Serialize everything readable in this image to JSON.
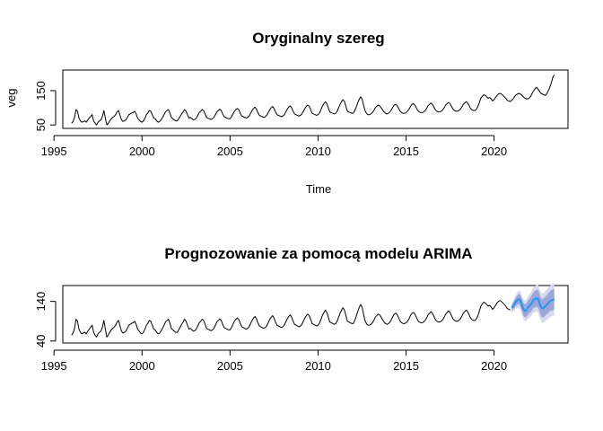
{
  "chart_data": [
    {
      "type": "line",
      "title": "Oryginalny szereg",
      "xlabel": "Time",
      "ylabel": "veg",
      "xlim": [
        1995.5,
        2024.2
      ],
      "ylim": [
        40,
        210
      ],
      "xticks": [
        "1995",
        "2000",
        "2005",
        "2010",
        "2015",
        "2020"
      ],
      "yticks": [
        "50",
        "150"
      ],
      "grid": false,
      "start": 1996.0,
      "frequency": 12,
      "series": [
        {
          "color": "#000000",
          "values": [
            55,
            60,
            72,
            95,
            90,
            70,
            62,
            58,
            60,
            62,
            58,
            65,
            70,
            75,
            80,
            62,
            55,
            50,
            58,
            62,
            65,
            75,
            92,
            70,
            50,
            55,
            62,
            68,
            72,
            75,
            80,
            88,
            92,
            78,
            65,
            60,
            62,
            65,
            72,
            80,
            82,
            85,
            86,
            90,
            82,
            70,
            65,
            60,
            58,
            62,
            70,
            80,
            85,
            92,
            90,
            80,
            70,
            68,
            62,
            58,
            60,
            65,
            72,
            80,
            88,
            92,
            95,
            85,
            72,
            68,
            65,
            62,
            62,
            68,
            75,
            82,
            88,
            95,
            90,
            80,
            70,
            72,
            68,
            65,
            66,
            70,
            78,
            86,
            90,
            95,
            92,
            82,
            72,
            70,
            68,
            66,
            68,
            72,
            80,
            88,
            92,
            96,
            92,
            82,
            74,
            72,
            70,
            68,
            68,
            74,
            82,
            90,
            95,
            98,
            94,
            84,
            76,
            74,
            72,
            70,
            72,
            76,
            84,
            92,
            98,
            102,
            96,
            86,
            78,
            76,
            74,
            72,
            74,
            78,
            86,
            94,
            100,
            104,
            98,
            88,
            80,
            78,
            76,
            74,
            76,
            80,
            88,
            96,
            102,
            106,
            100,
            90,
            82,
            80,
            78,
            76,
            78,
            82,
            90,
            98,
            104,
            108,
            104,
            94,
            84,
            82,
            80,
            78,
            80,
            85,
            95,
            105,
            112,
            118,
            112,
            100,
            88,
            86,
            84,
            82,
            84,
            90,
            100,
            110,
            118,
            124,
            118,
            104,
            90,
            88,
            86,
            84,
            84,
            92,
            102,
            114,
            124,
            132,
            126,
            108,
            92,
            84,
            80,
            80,
            82,
            86,
            92,
            100,
            104,
            108,
            106,
            100,
            94,
            88,
            84,
            82,
            84,
            88,
            94,
            102,
            108,
            110,
            106,
            98,
            90,
            86,
            84,
            84,
            86,
            90,
            96,
            104,
            110,
            112,
            108,
            100,
            92,
            88,
            86,
            86,
            88,
            92,
            98,
            106,
            110,
            114,
            110,
            102,
            94,
            90,
            88,
            88,
            90,
            94,
            100,
            108,
            112,
            116,
            112,
            104,
            96,
            92,
            90,
            90,
            92,
            96,
            102,
            110,
            114,
            118,
            114,
            106,
            98,
            94,
            92,
            92,
            96,
            104,
            116,
            128,
            134,
            138,
            136,
            132,
            128,
            130,
            126,
            120,
            124,
            130,
            136,
            140,
            142,
            140,
            136,
            132,
            128,
            122,
            120,
            118,
            122,
            126,
            132,
            138,
            140,
            142,
            140,
            136,
            132,
            128,
            126,
            126,
            128,
            134,
            142,
            150,
            156,
            160,
            154,
            148,
            142,
            140,
            138,
            136,
            142,
            150,
            160,
            172,
            188,
            196
          ]
        }
      ]
    },
    {
      "type": "line",
      "title": "Prognozowanie za pomocą modelu ARIMA",
      "xlabel": "",
      "ylabel": "",
      "xlim": [
        1995.5,
        2024.2
      ],
      "ylim": [
        35,
        180
      ],
      "xticks": [
        "1995",
        "2000",
        "2005",
        "2010",
        "2015",
        "2020"
      ],
      "yticks": [
        "40",
        "140"
      ],
      "grid": false,
      "start": 1996.0,
      "frequency": 12,
      "forecast_start": 2021.0,
      "series": [
        {
          "color": "#000000",
          "values": [
            55,
            60,
            72,
            95,
            90,
            70,
            62,
            58,
            60,
            62,
            58,
            65,
            70,
            75,
            80,
            62,
            55,
            50,
            58,
            62,
            65,
            75,
            92,
            70,
            50,
            55,
            62,
            68,
            72,
            75,
            80,
            88,
            92,
            78,
            65,
            60,
            62,
            65,
            72,
            80,
            82,
            85,
            86,
            90,
            82,
            70,
            65,
            60,
            58,
            62,
            70,
            80,
            85,
            92,
            90,
            80,
            70,
            68,
            62,
            58,
            60,
            65,
            72,
            80,
            88,
            92,
            95,
            85,
            72,
            68,
            65,
            62,
            62,
            68,
            75,
            82,
            88,
            95,
            90,
            80,
            70,
            72,
            68,
            65,
            66,
            70,
            78,
            86,
            90,
            95,
            92,
            82,
            72,
            70,
            68,
            66,
            68,
            72,
            80,
            88,
            92,
            96,
            92,
            82,
            74,
            72,
            70,
            68,
            68,
            74,
            82,
            90,
            95,
            98,
            94,
            84,
            76,
            74,
            72,
            70,
            72,
            76,
            84,
            92,
            98,
            102,
            96,
            86,
            78,
            76,
            74,
            72,
            74,
            78,
            86,
            94,
            100,
            104,
            98,
            88,
            80,
            78,
            76,
            74,
            76,
            80,
            88,
            96,
            102,
            106,
            100,
            90,
            82,
            80,
            78,
            76,
            78,
            82,
            90,
            98,
            104,
            108,
            104,
            94,
            84,
            82,
            80,
            78,
            80,
            85,
            95,
            105,
            112,
            118,
            112,
            100,
            88,
            86,
            84,
            82,
            84,
            90,
            100,
            110,
            118,
            124,
            118,
            104,
            90,
            88,
            86,
            84,
            84,
            92,
            102,
            114,
            124,
            132,
            126,
            108,
            92,
            84,
            80,
            80,
            82,
            86,
            92,
            100,
            104,
            108,
            106,
            100,
            94,
            88,
            84,
            82,
            84,
            88,
            94,
            102,
            108,
            110,
            106,
            98,
            90,
            86,
            84,
            84,
            86,
            90,
            96,
            104,
            110,
            112,
            108,
            100,
            92,
            88,
            86,
            86,
            88,
            92,
            98,
            106,
            110,
            114,
            110,
            102,
            94,
            90,
            88,
            88,
            90,
            94,
            100,
            108,
            112,
            116,
            112,
            104,
            96,
            92,
            90,
            90,
            92,
            96,
            102,
            110,
            114,
            118,
            114,
            106,
            98,
            94,
            92,
            92,
            96,
            104,
            116,
            128,
            134,
            138,
            136,
            132,
            128,
            130,
            126,
            120,
            124,
            130,
            136,
            140,
            142,
            140,
            136,
            132,
            128,
            122,
            120,
            118
          ]
        },
        {
          "color": "#2196F3",
          "start": 2021.0,
          "values": [
            124,
            128,
            134,
            140,
            144,
            146,
            142,
            130,
            120,
            116,
            118,
            124,
            128,
            132,
            138,
            144,
            146,
            148,
            146,
            136,
            126,
            122,
            124,
            128,
            132,
            136,
            140,
            142,
            144,
            146
          ],
          "band80_halfwidth": [
            6,
            8,
            10,
            11,
            12,
            13,
            14,
            15,
            16,
            16,
            17,
            18,
            18,
            19,
            20,
            20,
            21,
            21,
            22,
            22,
            23,
            23,
            24,
            24,
            24,
            25,
            25,
            26,
            26,
            26
          ],
          "band95_halfwidth": [
            10,
            13,
            16,
            18,
            20,
            22,
            23,
            24,
            25,
            26,
            27,
            28,
            29,
            30,
            31,
            32,
            33,
            34,
            35,
            35,
            36,
            37,
            37,
            38,
            38,
            39,
            39,
            40,
            40,
            41
          ],
          "band80_color": "#9DA6D8",
          "band95_color": "#D7DAEE"
        }
      ]
    }
  ]
}
